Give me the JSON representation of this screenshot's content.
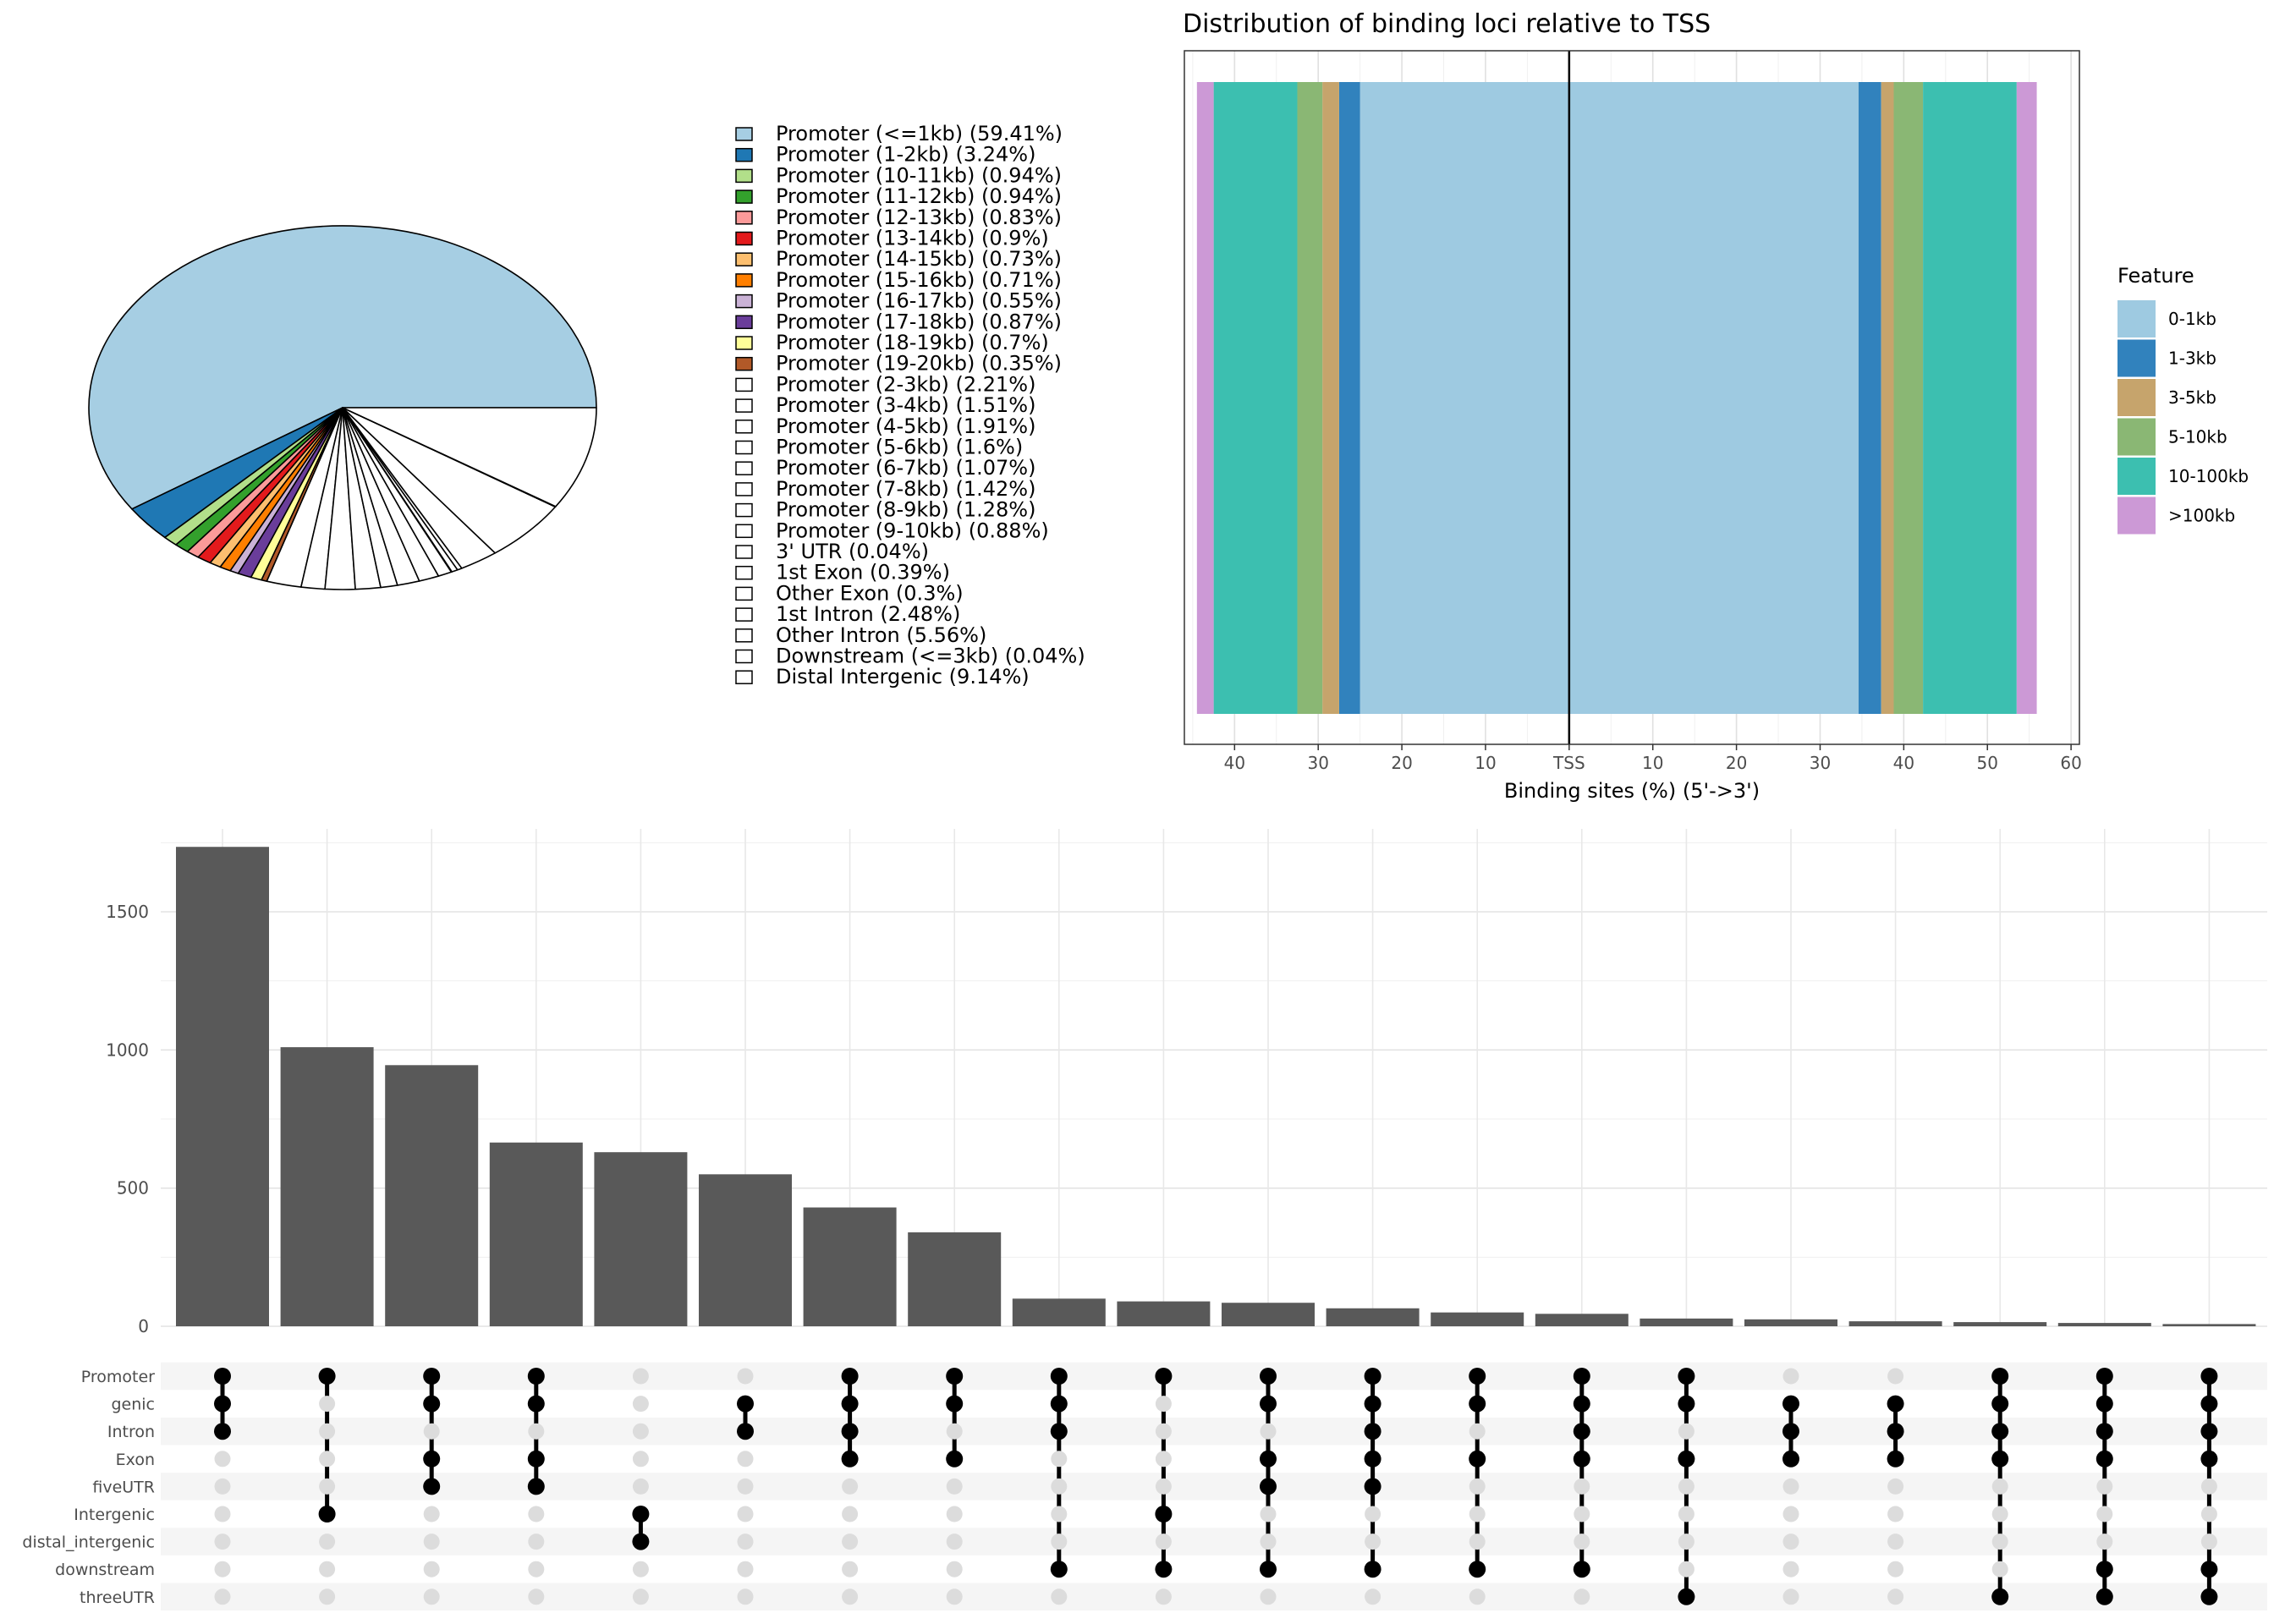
{
  "chart_data": [
    {
      "type": "pie",
      "labels": [
        "Promoter (<=1kb) (59.41%)",
        "Promoter (1-2kb) (3.24%)",
        "Promoter (10-11kb) (0.94%)",
        "Promoter (11-12kb) (0.94%)",
        "Promoter (12-13kb) (0.83%)",
        "Promoter (13-14kb) (0.9%)",
        "Promoter (14-15kb) (0.73%)",
        "Promoter (15-16kb) (0.71%)",
        "Promoter (16-17kb) (0.55%)",
        "Promoter (17-18kb) (0.87%)",
        "Promoter (18-19kb) (0.7%)",
        "Promoter (19-20kb) (0.35%)",
        "Promoter (2-3kb) (2.21%)",
        "Promoter (3-4kb) (1.51%)",
        "Promoter (4-5kb) (1.91%)",
        "Promoter (5-6kb) (1.6%)",
        "Promoter (6-7kb) (1.07%)",
        "Promoter (7-8kb) (1.42%)",
        "Promoter (8-9kb) (1.28%)",
        "Promoter (9-10kb) (0.88%)",
        "3' UTR (0.04%)",
        "1st Exon (0.39%)",
        "Other Exon (0.3%)",
        "1st Intron (2.48%)",
        "Other Intron (5.56%)",
        "Downstream (<=3kb) (0.04%)",
        "Distal Intergenic (9.14%)"
      ],
      "values": [
        59.41,
        3.24,
        0.94,
        0.94,
        0.83,
        0.9,
        0.73,
        0.71,
        0.55,
        0.87,
        0.7,
        0.35,
        2.21,
        1.51,
        1.91,
        1.6,
        1.07,
        1.42,
        1.28,
        0.88,
        0.04,
        0.39,
        0.3,
        2.48,
        5.56,
        0.04,
        9.14
      ],
      "colors": [
        "#a6cee3",
        "#1f78b4",
        "#b2df8a",
        "#33a02c",
        "#fb9a99",
        "#e31a1c",
        "#fdbf6f",
        "#ff7f00",
        "#cab2d6",
        "#6a3d9a",
        "#ffff99",
        "#b15928",
        "#ffffff",
        "#ffffff",
        "#ffffff",
        "#ffffff",
        "#ffffff",
        "#ffffff",
        "#ffffff",
        "#ffffff",
        "#ffffff",
        "#ffffff",
        "#ffffff",
        "#ffffff",
        "#ffffff",
        "#ffffff",
        "#ffffff"
      ]
    },
    {
      "type": "bar",
      "orientation": "horizontal-diverging",
      "title": "Distribution of binding loci relative to TSS",
      "xlabel": "Binding sites (%) (5'->3')",
      "xlim": [
        -46,
        61
      ],
      "tick_values": [
        -40,
        -30,
        -20,
        -10,
        0,
        10,
        20,
        30,
        40,
        50,
        60
      ],
      "tick_labels": [
        "40",
        "30",
        "20",
        "10",
        "TSS",
        "10",
        "20",
        "30",
        "40",
        "50",
        "60"
      ],
      "legend_title": "Feature",
      "legend_position": "right",
      "features": [
        "0-1kb",
        "1-3kb",
        "3-5kb",
        "5-10kb",
        "10-100kb",
        ">100kb"
      ],
      "colors": [
        "#9ecae1",
        "#3182bd",
        "#c6a46c",
        "#8ab774",
        "#3cbfb0",
        "#cc99d6"
      ],
      "upstream_pct": [
        25.0,
        2.5,
        2.0,
        3.0,
        10.0,
        2.0
      ],
      "downstream_pct": [
        34.6,
        2.7,
        1.5,
        3.5,
        11.2,
        2.4
      ]
    },
    {
      "type": "bar",
      "subtype": "upset",
      "yticks": [
        0,
        500,
        1000,
        1500
      ],
      "ylim": [
        0,
        1800
      ],
      "values": [
        1735,
        1010,
        945,
        665,
        630,
        550,
        430,
        340,
        100,
        90,
        85,
        65,
        50,
        45,
        28,
        25,
        18,
        15,
        12,
        8
      ],
      "sets": [
        "Promoter",
        "genic",
        "Intron",
        "Exon",
        "fiveUTR",
        "Intergenic",
        "distal_intergenic",
        "downstream",
        "threeUTR"
      ],
      "memberships": [
        [
          "Promoter",
          "genic",
          "Intron"
        ],
        [
          "Promoter",
          "Intergenic"
        ],
        [
          "Promoter",
          "genic",
          "Exon",
          "fiveUTR"
        ],
        [
          "Promoter",
          "genic",
          "Exon",
          "fiveUTR"
        ],
        [
          "Intergenic",
          "distal_intergenic"
        ],
        [
          "genic",
          "Intron"
        ],
        [
          "Promoter",
          "genic",
          "Intron",
          "Exon"
        ],
        [
          "Promoter",
          "genic",
          "Exon"
        ],
        [
          "Promoter",
          "genic",
          "Intron",
          "downstream"
        ],
        [
          "Promoter",
          "Intergenic",
          "downstream"
        ],
        [
          "Promoter",
          "genic",
          "Exon",
          "fiveUTR",
          "downstream"
        ],
        [
          "Promoter",
          "genic",
          "Intron",
          "Exon",
          "fiveUTR",
          "downstream"
        ],
        [
          "Promoter",
          "genic",
          "Exon",
          "downstream"
        ],
        [
          "Promoter",
          "genic",
          "Intron",
          "Exon",
          "downstream"
        ],
        [
          "Promoter",
          "genic",
          "Exon",
          "threeUTR"
        ],
        [
          "genic",
          "Intron",
          "Exon"
        ],
        [
          "genic",
          "Intron",
          "Exon"
        ],
        [
          "Promoter",
          "genic",
          "Intron",
          "Exon",
          "threeUTR"
        ],
        [
          "Promoter",
          "genic",
          "Intron",
          "Exon",
          "downstream",
          "threeUTR"
        ],
        [
          "Promoter",
          "genic",
          "Intron",
          "Exon",
          "downstream",
          "threeUTR"
        ]
      ]
    }
  ]
}
